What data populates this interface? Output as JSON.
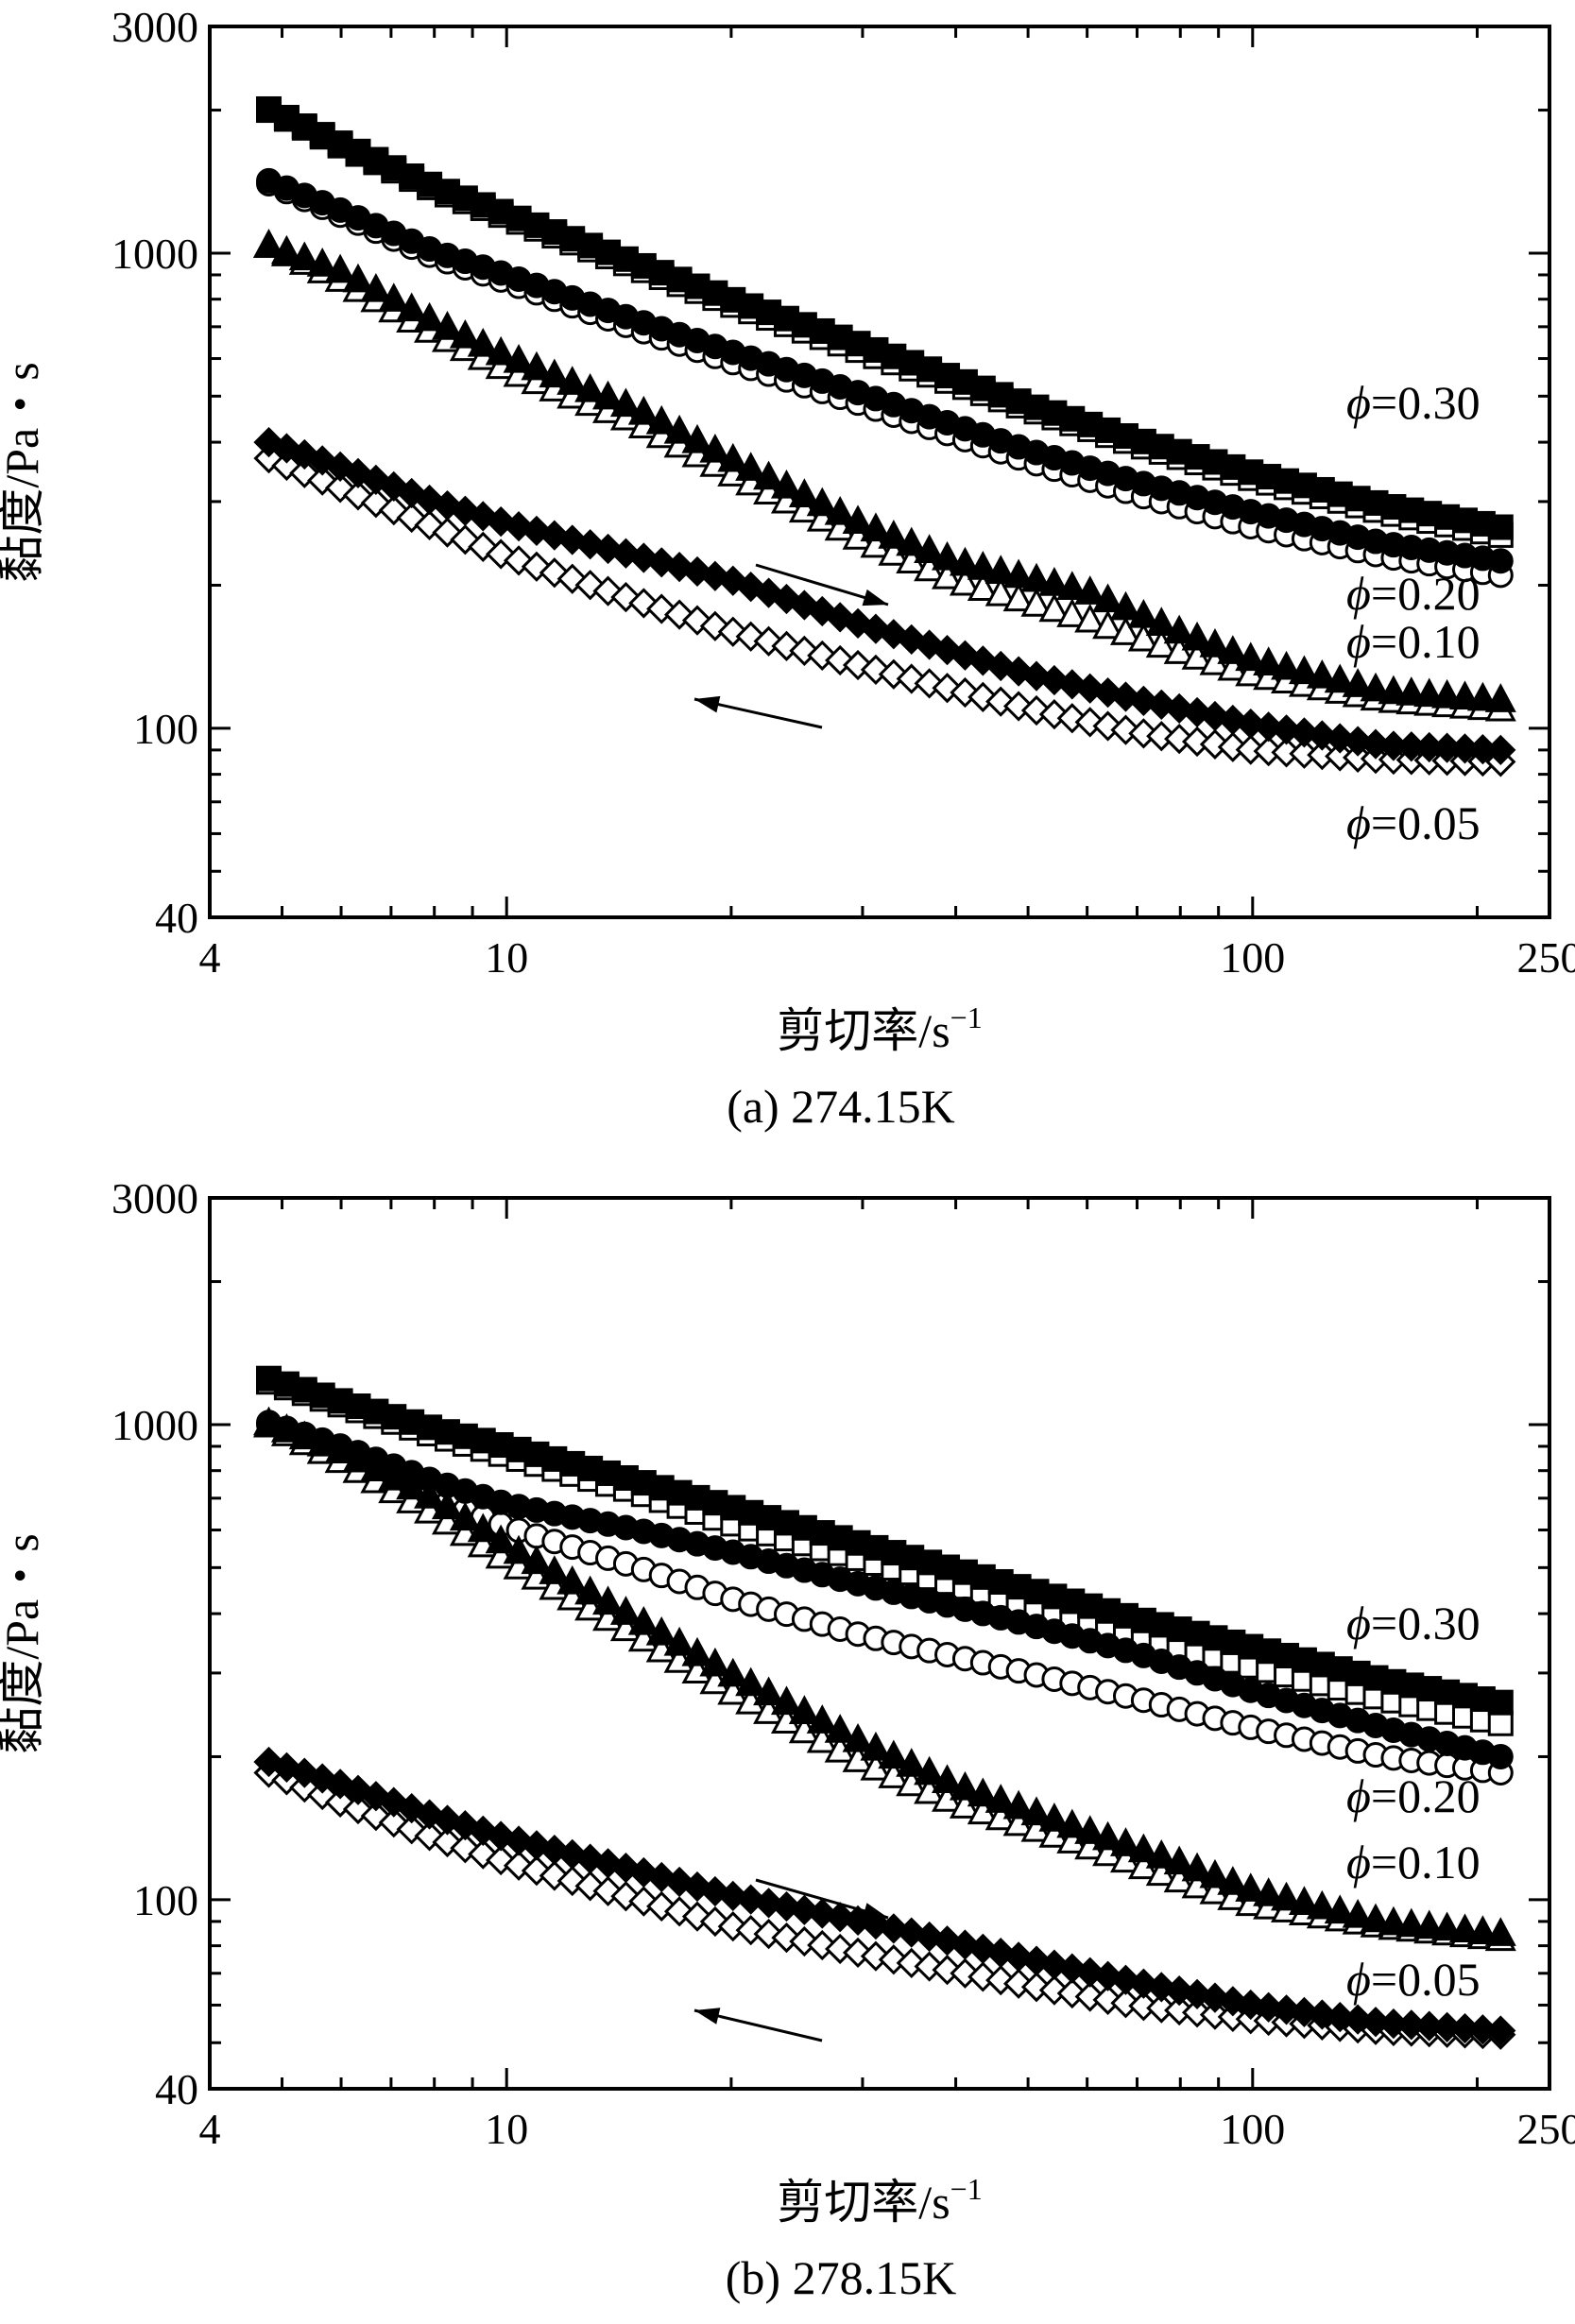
{
  "chart_data": [
    {
      "type": "scatter",
      "caption": "(a) 274.15K",
      "xlabel": "剪切率/s",
      "xlabel_sup": "−1",
      "ylabel": "黏度/Pa・s",
      "xscale": "log",
      "yscale": "log",
      "xlim": [
        4,
        250
      ],
      "ylim": [
        40,
        3000
      ],
      "xticks": [
        4,
        10,
        100,
        250
      ],
      "yticks": [
        40,
        100,
        1000,
        3000
      ],
      "grid": false,
      "arrows": [
        "increasing shear rate (up)",
        "decreasing shear rate (down)"
      ],
      "series": [
        {
          "name": "φ=0.30",
          "phi": "0.30",
          "up": {
            "marker": "filled-square",
            "points": [
              [
                4.8,
                2010
              ],
              [
                6,
                1700
              ],
              [
                8,
                1380
              ],
              [
                10,
                1210
              ],
              [
                15,
                950
              ],
              [
                20,
                800
              ],
              [
                30,
                640
              ],
              [
                50,
                480
              ],
              [
                70,
                405
              ],
              [
                100,
                345
              ],
              [
                150,
                295
              ],
              [
                215,
                265
              ]
            ]
          },
          "down": {
            "marker": "open-square",
            "points": [
              [
                4.8,
                2000
              ],
              [
                6,
                1680
              ],
              [
                8,
                1360
              ],
              [
                10,
                1190
              ],
              [
                15,
                930
              ],
              [
                20,
                780
              ],
              [
                30,
                620
              ],
              [
                50,
                470
              ],
              [
                70,
                395
              ],
              [
                100,
                335
              ],
              [
                150,
                285
              ],
              [
                215,
                255
              ]
            ]
          }
        },
        {
          "name": "φ=0.20",
          "phi": "0.20",
          "up": {
            "marker": "filled-circle",
            "points": [
              [
                4.8,
                1420
              ],
              [
                6,
                1230
              ],
              [
                8,
                1010
              ],
              [
                10,
                900
              ],
              [
                15,
                720
              ],
              [
                20,
                620
              ],
              [
                30,
                505
              ],
              [
                50,
                385
              ],
              [
                70,
                330
              ],
              [
                100,
                285
              ],
              [
                150,
                245
              ],
              [
                215,
                225
              ]
            ]
          },
          "down": {
            "marker": "open-circle",
            "points": [
              [
                4.8,
                1400
              ],
              [
                6,
                1200
              ],
              [
                8,
                980
              ],
              [
                10,
                870
              ],
              [
                15,
                690
              ],
              [
                20,
                590
              ],
              [
                30,
                480
              ],
              [
                50,
                365
              ],
              [
                70,
                310
              ],
              [
                100,
                265
              ],
              [
                150,
                230
              ],
              [
                215,
                210
              ]
            ]
          }
        },
        {
          "name": "φ=0.10",
          "phi": "0.10",
          "up": {
            "marker": "filled-triangle",
            "points": [
              [
                4.8,
                1040
              ],
              [
                6,
                920
              ],
              [
                8,
                720
              ],
              [
                10,
                610
              ],
              [
                15,
                470
              ],
              [
                20,
                370
              ],
              [
                30,
                270
              ],
              [
                40,
                225
              ],
              [
                60,
                195
              ],
              [
                80,
                160
              ],
              [
                100,
                140
              ],
              [
                150,
                120
              ],
              [
                215,
                115
              ]
            ]
          },
          "down": {
            "marker": "open-triangle",
            "points": [
              [
                4.8,
                1040
              ],
              [
                6,
                880
              ],
              [
                8,
                680
              ],
              [
                10,
                570
              ],
              [
                15,
                440
              ],
              [
                20,
                345
              ],
              [
                30,
                250
              ],
              [
                40,
                205
              ],
              [
                60,
                170
              ],
              [
                80,
                145
              ],
              [
                100,
                130
              ],
              [
                150,
                115
              ],
              [
                215,
                110
              ]
            ]
          }
        },
        {
          "name": "φ=0.05",
          "phi": "0.05",
          "up": {
            "marker": "filled-diamond",
            "points": [
              [
                4.8,
                400
              ],
              [
                6,
                355
              ],
              [
                8,
                300
              ],
              [
                10,
                270
              ],
              [
                15,
                230
              ],
              [
                20,
                205
              ],
              [
                30,
                165
              ],
              [
                50,
                130
              ],
              [
                70,
                115
              ],
              [
                100,
                102
              ],
              [
                150,
                92
              ],
              [
                215,
                90
              ]
            ]
          },
          "down": {
            "marker": "open-diamond",
            "points": [
              [
                4.8,
                370
              ],
              [
                6,
                320
              ],
              [
                8,
                265
              ],
              [
                10,
                230
              ],
              [
                15,
                185
              ],
              [
                20,
                160
              ],
              [
                30,
                135
              ],
              [
                50,
                110
              ],
              [
                70,
                98
              ],
              [
                100,
                90
              ],
              [
                150,
                86
              ],
              [
                215,
                85
              ]
            ]
          }
        }
      ]
    },
    {
      "type": "scatter",
      "caption": "(b) 278.15K",
      "xlabel": "剪切率/s",
      "xlabel_sup": "−1",
      "ylabel": "黏度/Pa・s",
      "xscale": "log",
      "yscale": "log",
      "xlim": [
        4,
        250
      ],
      "ylim": [
        40,
        3000
      ],
      "xticks": [
        4,
        10,
        100,
        250
      ],
      "yticks": [
        40,
        100,
        1000,
        3000
      ],
      "grid": false,
      "arrows": [
        "increasing shear rate (up)",
        "decreasing shear rate (down)"
      ],
      "series": [
        {
          "name": "φ=0.30",
          "phi": "0.30",
          "up": {
            "marker": "filled-square",
            "points": [
              [
                4.8,
                1250
              ],
              [
                6,
                1120
              ],
              [
                8,
                980
              ],
              [
                10,
                900
              ],
              [
                15,
                760
              ],
              [
                20,
                670
              ],
              [
                30,
                560
              ],
              [
                50,
                450
              ],
              [
                70,
                390
              ],
              [
                100,
                340
              ],
              [
                150,
                290
              ],
              [
                215,
                260
              ]
            ]
          },
          "down": {
            "marker": "open-square",
            "points": [
              [
                4.8,
                1230
              ],
              [
                6,
                1100
              ],
              [
                8,
                950
              ],
              [
                10,
                860
              ],
              [
                15,
                720
              ],
              [
                20,
                620
              ],
              [
                30,
                520
              ],
              [
                50,
                420
              ],
              [
                70,
                360
              ],
              [
                100,
                310
              ],
              [
                150,
                265
              ],
              [
                215,
                235
              ]
            ]
          }
        },
        {
          "name": "φ=0.20",
          "phi": "0.20",
          "up": {
            "marker": "filled-circle",
            "points": [
              [
                4.8,
                1010
              ],
              [
                6,
                900
              ],
              [
                8,
                760
              ],
              [
                10,
                680
              ],
              [
                15,
                600
              ],
              [
                20,
                540
              ],
              [
                30,
                460
              ],
              [
                50,
                380
              ],
              [
                70,
                330
              ],
              [
                100,
                275
              ],
              [
                150,
                230
              ],
              [
                215,
                200
              ]
            ]
          },
          "down": {
            "marker": "open-circle",
            "points": [
              [
                4.8,
                1000
              ],
              [
                6,
                860
              ],
              [
                8,
                700
              ],
              [
                10,
                610
              ],
              [
                15,
                500
              ],
              [
                20,
                430
              ],
              [
                30,
                360
              ],
              [
                50,
                300
              ],
              [
                70,
                265
              ],
              [
                100,
                230
              ],
              [
                150,
                200
              ],
              [
                215,
                185
              ]
            ]
          }
        },
        {
          "name": "φ=0.10",
          "phi": "0.10",
          "up": {
            "marker": "filled-triangle",
            "points": [
              [
                4.8,
                1010
              ],
              [
                6,
                880
              ],
              [
                8,
                700
              ],
              [
                10,
                560
              ],
              [
                15,
                390
              ],
              [
                20,
                300
              ],
              [
                30,
                215
              ],
              [
                40,
                175
              ],
              [
                60,
                140
              ],
              [
                80,
                120
              ],
              [
                100,
                105
              ],
              [
                150,
                90
              ],
              [
                215,
                85
              ]
            ]
          },
          "down": {
            "marker": "open-triangle",
            "points": [
              [
                4.8,
                1000
              ],
              [
                6,
                840
              ],
              [
                8,
                650
              ],
              [
                10,
                520
              ],
              [
                15,
                360
              ],
              [
                20,
                275
              ],
              [
                30,
                195
              ],
              [
                40,
                160
              ],
              [
                60,
                130
              ],
              [
                80,
                110
              ],
              [
                100,
                98
              ],
              [
                150,
                88
              ],
              [
                215,
                83
              ]
            ]
          }
        },
        {
          "name": "φ=0.05",
          "phi": "0.05",
          "up": {
            "marker": "filled-diamond",
            "points": [
              [
                4.8,
                195
              ],
              [
                6,
                175
              ],
              [
                8,
                150
              ],
              [
                10,
                135
              ],
              [
                15,
                115
              ],
              [
                20,
                102
              ],
              [
                30,
                90
              ],
              [
                50,
                75
              ],
              [
                70,
                67
              ],
              [
                100,
                60
              ],
              [
                150,
                55
              ],
              [
                215,
                53
              ]
            ]
          },
          "down": {
            "marker": "open-diamond",
            "points": [
              [
                4.8,
                185
              ],
              [
                6,
                160
              ],
              [
                8,
                135
              ],
              [
                10,
                120
              ],
              [
                15,
                100
              ],
              [
                20,
                88
              ],
              [
                30,
                77
              ],
              [
                50,
                66
              ],
              [
                70,
                60
              ],
              [
                100,
                56
              ],
              [
                150,
                53
              ],
              [
                215,
                52
              ]
            ]
          }
        }
      ]
    }
  ]
}
